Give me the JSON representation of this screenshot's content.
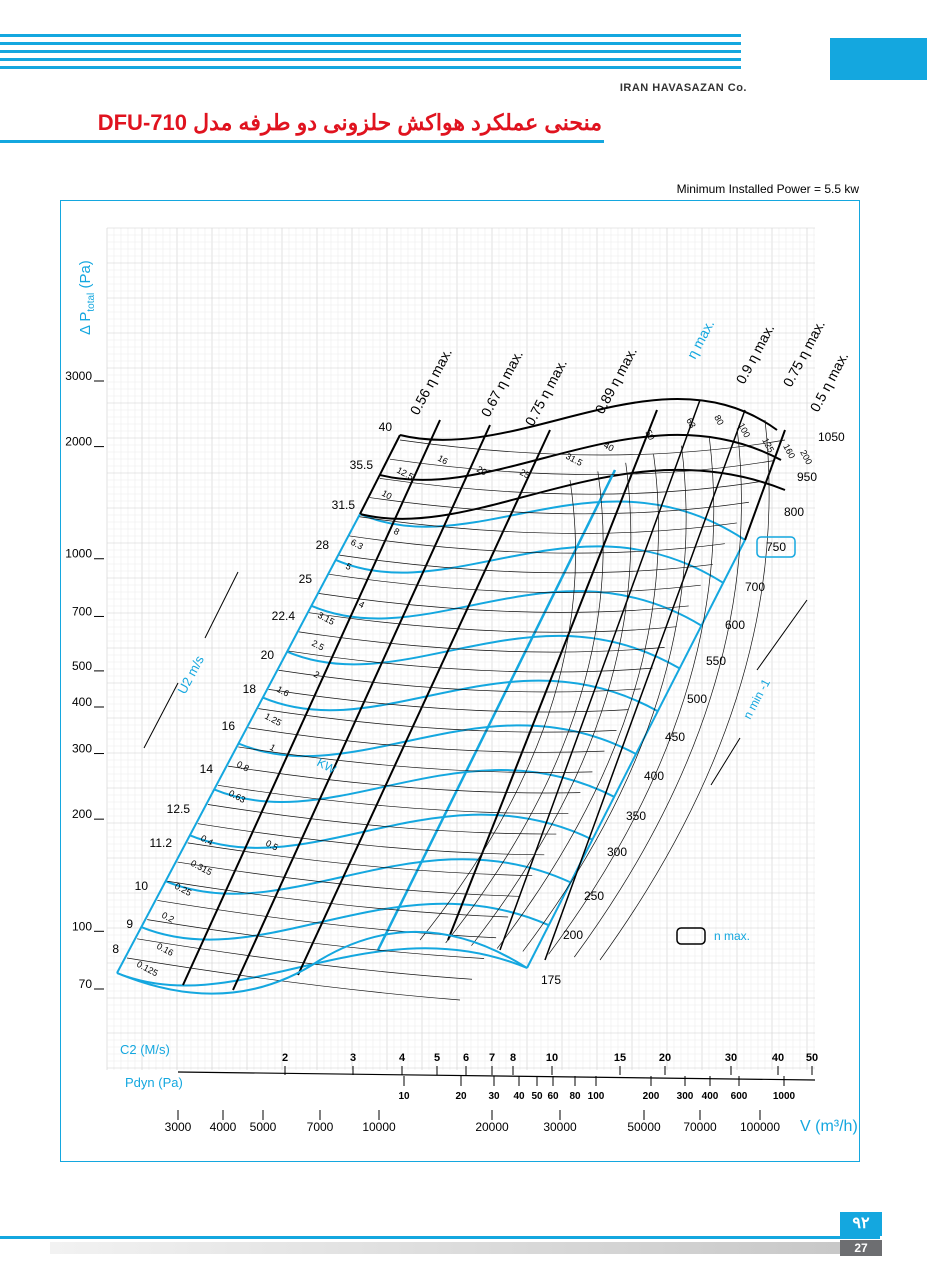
{
  "header": {
    "company": "IRAN HAVASAZAN Co.",
    "title": "منحنی عملکرد هواکش حلزونی دو طرفه مدل DFU-710",
    "min_power": "Minimum Installed Power = 5.5 kw"
  },
  "footer": {
    "page_fa": "۹۲",
    "page_en": "27"
  },
  "colors": {
    "accent": "#14a7df",
    "title": "#e0131f",
    "curve_black": "#000000"
  },
  "chart_data": {
    "type": "line",
    "yaxis": {
      "label_prefix": "Δ P",
      "label_sub": "total",
      "label_unit": "(Pa)",
      "scale": "log",
      "ticks": [
        "3000",
        "2000",
        "1000",
        "700",
        "500",
        "400",
        "300",
        "200",
        "100",
        "70"
      ]
    },
    "xaxis": {
      "label": "V (m³/h)",
      "scale": "log",
      "ticks": [
        "3000",
        "4000",
        "5000",
        "7000",
        "10000",
        "20000",
        "30000",
        "50000",
        "70000",
        "100000"
      ]
    },
    "c2_scale": {
      "label": "C2 (M/s)",
      "ticks": [
        "2",
        "3",
        "4",
        "5",
        "6",
        "7",
        "8",
        "10",
        "15",
        "20",
        "30",
        "40",
        "50"
      ]
    },
    "pdyn_scale": {
      "label": "Pdyn (Pa)",
      "ticks": [
        "10",
        "20",
        "30",
        "40",
        "50",
        "60",
        "80",
        "100",
        "200",
        "300",
        "400",
        "600",
        "1000"
      ]
    },
    "u2_scale": {
      "label": "U2 m/s",
      "values": [
        "40",
        "35.5",
        "31.5",
        "28",
        "25",
        "22.4",
        "20",
        "18",
        "16",
        "14",
        "12.5",
        "11.2",
        "10",
        "9",
        "8"
      ]
    },
    "speed_scale": {
      "label": "n min -1",
      "values": [
        "1050",
        "950",
        "800",
        "750",
        "700",
        "600",
        "550",
        "500",
        "450",
        "400",
        "350",
        "300",
        "250",
        "200",
        "175"
      ],
      "n_max": "750"
    },
    "power_labels": {
      "label": "KW",
      "values": [
        "16",
        "20",
        "25",
        "31.5",
        "40",
        "50",
        "63",
        "80",
        "100",
        "125",
        "160",
        "200",
        "12.5",
        "10",
        "8",
        "6.3",
        "5",
        "4",
        "3.15",
        "2.5",
        "2",
        "1.6",
        "1.25",
        "1",
        "0.8",
        "0.63",
        "0.5",
        "0.4",
        "0.315",
        "0.25",
        "0.2",
        "0.16",
        "0.125"
      ]
    },
    "efficiency_lines": [
      "0.56 η max.",
      "0.67 η max.",
      "0.75 η max.",
      "0.89 η max.",
      "η max.",
      "0.9 η max.",
      "0.75 η max.",
      "0.5 η max."
    ],
    "legend_nmax": "n max."
  }
}
